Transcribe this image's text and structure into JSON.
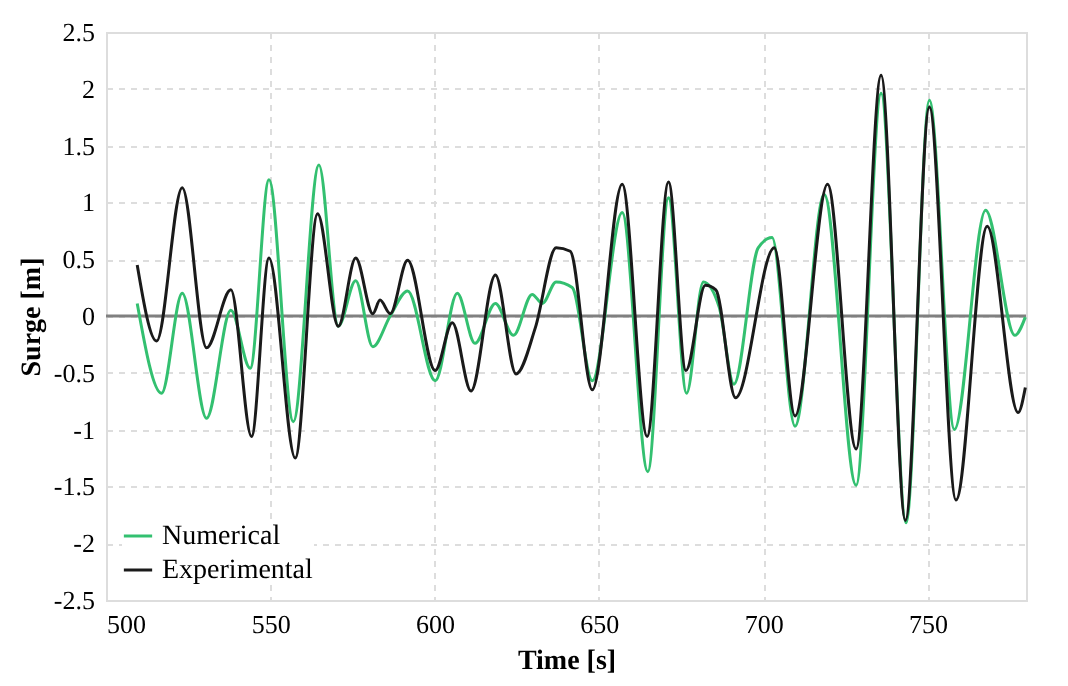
{
  "chart_data": {
    "type": "line",
    "xlabel": "Time [s]",
    "ylabel": "Surge [m]",
    "xlim": [
      500,
      780
    ],
    "xticks": [
      500,
      550,
      600,
      650,
      700,
      750
    ],
    "ylim": [
      -2.5,
      2.5
    ],
    "yticks": [
      -2.5,
      -2,
      -1.5,
      -1,
      -0.5,
      0,
      0.5,
      1,
      1.5,
      2,
      2.5
    ],
    "grid": true,
    "legend": "bottom left",
    "line_style": "solid",
    "marker": "none",
    "ref_lines": [
      {
        "axis": "y",
        "value": 0,
        "color": "#808080"
      }
    ],
    "series": [
      {
        "name": "Numerical",
        "color": "#33c070",
        "x": [
          509.5,
          516.9,
          523.2,
          530.6,
          538,
          543.9,
          549.6,
          557,
          564.8,
          570.7,
          576,
          581.2,
          586.5,
          591.8,
          600.2,
          606.9,
          612.3,
          618.5,
          624,
          629.7,
          632.8,
          637,
          641.9,
          648,
          657.1,
          664.9,
          671.2,
          676.7,
          681.8,
          686.6,
          691.1,
          698.5,
          702.7,
          709.7,
          718.6,
          728.3,
          735.9,
          743.5,
          750.6,
          758.2,
          767.7,
          776.6,
          779.8
        ],
        "values": [
          0.11,
          -0.68,
          0.2,
          -0.9,
          0.05,
          -0.46,
          1.2,
          -0.93,
          1.33,
          -0.09,
          0.31,
          -0.27,
          0.0,
          0.22,
          -0.57,
          0.2,
          -0.24,
          0.11,
          -0.17,
          0.19,
          0.11,
          0.3,
          0.25,
          -0.57,
          0.91,
          -1.37,
          1.04,
          -0.68,
          0.3,
          0.08,
          -0.6,
          0.6,
          0.69,
          -0.97,
          1.07,
          -1.49,
          1.96,
          -1.82,
          1.9,
          -1.0,
          0.93,
          -0.17,
          -0.01
        ]
      },
      {
        "name": "Experimental",
        "color": "#1a1a1a",
        "x": [
          509.5,
          515.4,
          523.2,
          530.6,
          538,
          544.3,
          549.6,
          557.6,
          564.4,
          570.7,
          576,
          581.2,
          583.4,
          586.5,
          591.8,
          600.2,
          605.4,
          611.1,
          618.5,
          624.8,
          630.7,
          637,
          641.3,
          648,
          657.1,
          664.7,
          671.2,
          676.5,
          682.4,
          685.6,
          691.6,
          703.4,
          709.7,
          719.6,
          728.3,
          735.9,
          743.3,
          750.6,
          758.7,
          768.2,
          777.6,
          779.8
        ],
        "values": [
          0.45,
          -0.22,
          1.13,
          -0.28,
          0.23,
          -1.06,
          0.51,
          -1.25,
          0.9,
          -0.09,
          0.51,
          0.02,
          0.14,
          0.02,
          0.49,
          -0.48,
          -0.06,
          -0.66,
          0.36,
          -0.51,
          -0.1,
          0.6,
          0.57,
          -0.65,
          1.16,
          -1.06,
          1.18,
          -0.48,
          0.27,
          0.23,
          -0.72,
          0.6,
          -0.88,
          1.16,
          -1.17,
          2.12,
          -1.8,
          1.84,
          -1.62,
          0.79,
          -0.85,
          -0.63
        ]
      }
    ]
  }
}
